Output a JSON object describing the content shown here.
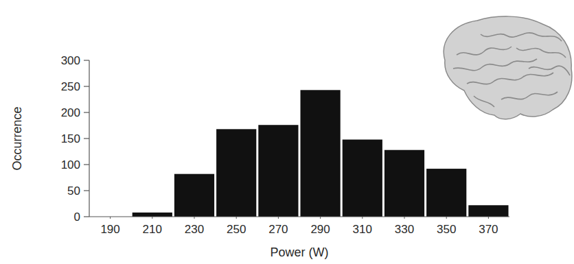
{
  "chart_data": {
    "type": "histogram",
    "x_label": "Power (W)",
    "y_label": "Occurrence",
    "bins": [
      180,
      200,
      220,
      240,
      260,
      280,
      300,
      320,
      340,
      360,
      380
    ],
    "values": [
      0,
      8,
      82,
      168,
      176,
      243,
      148,
      128,
      92,
      22
    ],
    "color": "#111111",
    "xlim": [
      180,
      380
    ],
    "xticks": [
      190,
      210,
      230,
      250,
      270,
      290,
      310,
      330,
      350,
      370
    ],
    "ylim": [
      0,
      300
    ],
    "yticks": [
      0,
      50,
      100,
      150,
      200,
      250,
      300
    ],
    "grid": false
  }
}
